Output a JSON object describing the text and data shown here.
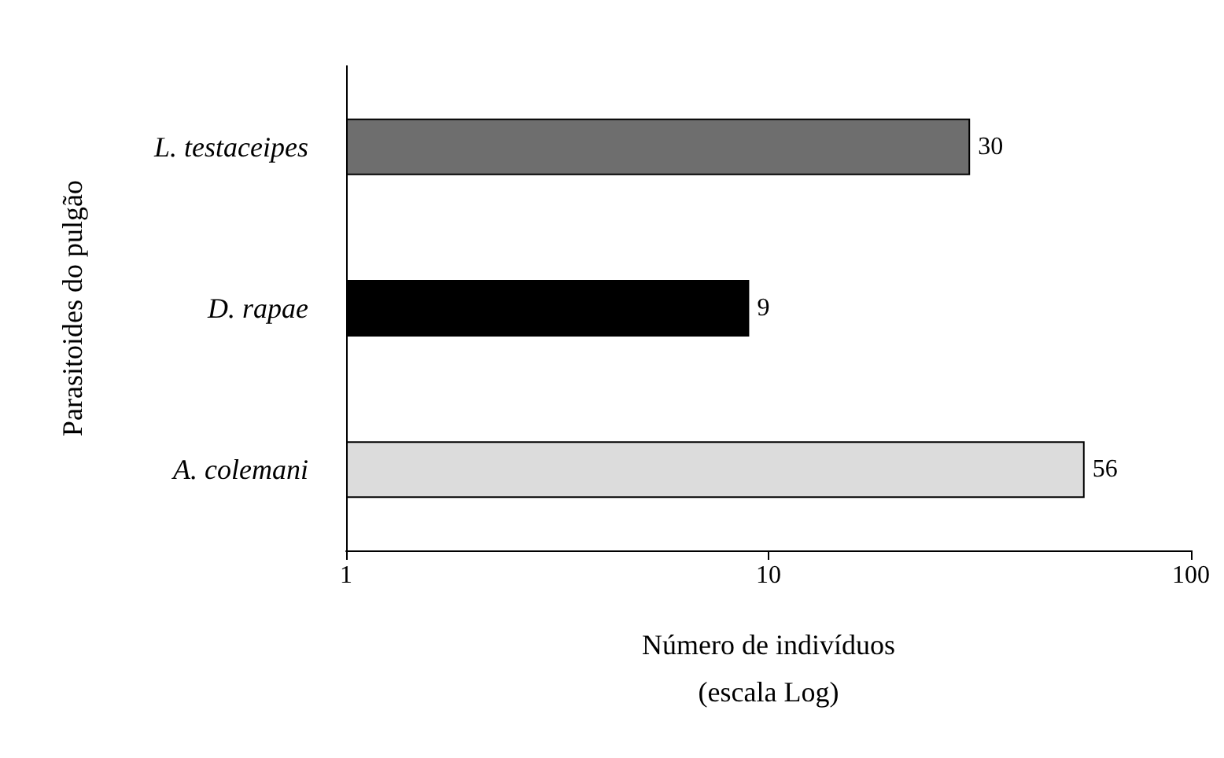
{
  "chart_data": {
    "type": "bar",
    "orientation": "horizontal",
    "log": "x",
    "ylabel": "Parasitoides do pulgão",
    "xlabel": "Número de indivíduos\n(escala Log)",
    "categories": [
      "L. testaceipes",
      "D. rapae",
      "A. colemani"
    ],
    "values": [
      30,
      9,
      56
    ],
    "colors": [
      "#6e6e6e",
      "#000000",
      "#dcdcdc"
    ],
    "xlim": [
      1,
      100
    ],
    "xticks": [
      1,
      10,
      100
    ],
    "data_labels": true
  }
}
